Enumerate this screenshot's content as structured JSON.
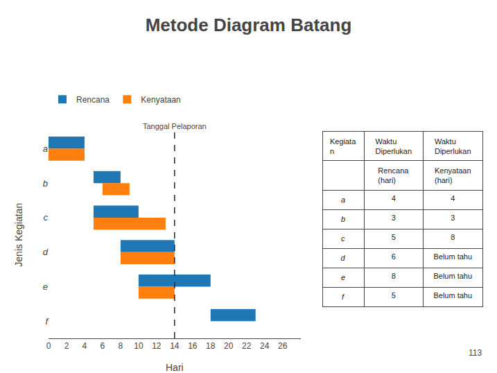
{
  "chart_data": {
    "type": "gantt",
    "title": "Metode Diagram Batang",
    "orientation": "horizontal",
    "categories": [
      "a",
      "b",
      "c",
      "d",
      "e",
      "f"
    ],
    "series": [
      {
        "name": "Rencana",
        "starts": [
          0,
          5,
          5,
          8,
          10,
          18
        ],
        "values": [
          4,
          3,
          5,
          6,
          8,
          5
        ]
      },
      {
        "name": "Kenyataan",
        "starts": [
          0,
          6,
          5,
          8,
          10,
          null
        ],
        "values": [
          4,
          3,
          8,
          6,
          4,
          null
        ]
      }
    ],
    "xlabel": "Hari",
    "ylabel": "Jenis Kegiatan",
    "xlim": [
      0,
      28
    ],
    "xticks": [
      0,
      2,
      4,
      6,
      8,
      10,
      12,
      14,
      16,
      18,
      20,
      22,
      24,
      26
    ],
    "grid": false,
    "legend": "top left",
    "annotations": [
      {
        "text": "Tanggal Pelaporan",
        "x": 14,
        "line_style": "dashed"
      }
    ],
    "table": {
      "header": [
        [
          "Kegiata\nn",
          "Waktu\nDiperlukan",
          "Waktu\nDiperlukan"
        ],
        [
          null,
          "Rencana (hari)",
          "Kenyataan\n(hari)"
        ]
      ],
      "rows": [
        [
          "a",
          "4",
          "4"
        ],
        [
          "b",
          "3",
          "3"
        ],
        [
          "c",
          "5",
          "8"
        ],
        [
          "d",
          "6",
          "Belum tahu"
        ],
        [
          "e",
          "8",
          "Belum tahu"
        ],
        [
          "f",
          "5",
          "Belum tahu"
        ]
      ]
    },
    "page_number": "113"
  }
}
